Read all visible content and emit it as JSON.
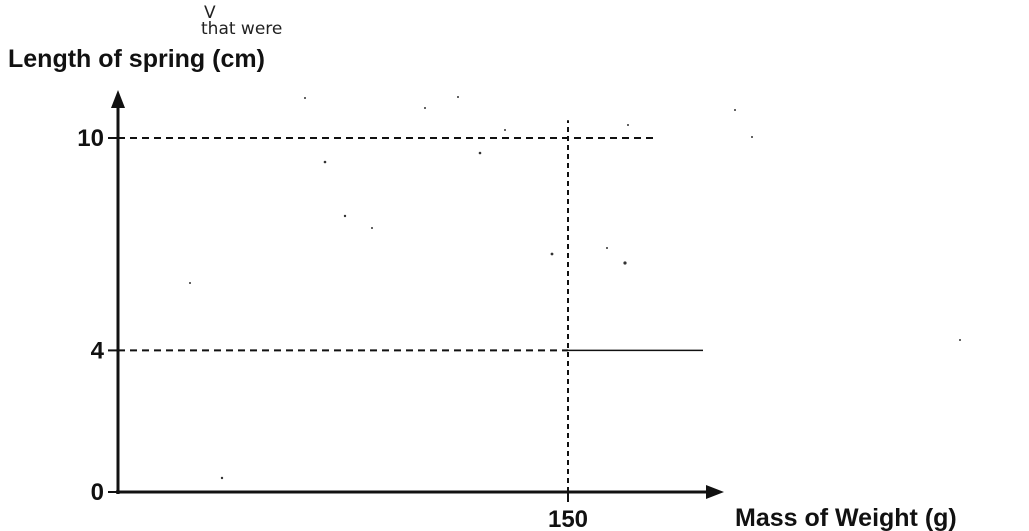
{
  "chart_data": {
    "type": "line",
    "xlabel": "Mass of Weight (g)",
    "ylabel": "Length of spring (cm)",
    "xlim": [
      0,
      220
    ],
    "ylim": [
      0,
      11.5
    ],
    "x_ticks": [
      {
        "value": 150,
        "label": "150"
      }
    ],
    "y_ticks": [
      {
        "value": 0,
        "label": "0"
      },
      {
        "value": 4,
        "label": "4"
      },
      {
        "value": 10,
        "label": "10"
      }
    ],
    "reference_lines": [
      {
        "orientation": "horizontal",
        "y": 10,
        "x_from": 0,
        "x_to": 180,
        "style": "dashed"
      },
      {
        "orientation": "horizontal",
        "y": 4,
        "x_from": 0,
        "x_to": 150,
        "style": "dashed"
      },
      {
        "orientation": "horizontal",
        "y": 4,
        "x_from": 150,
        "x_to": 195,
        "style": "solid"
      },
      {
        "orientation": "vertical",
        "x": 150,
        "y_from": 0,
        "y_to": 10.5,
        "style": "dashed"
      }
    ],
    "grid": false,
    "annotations": [
      {
        "text": "V"
      },
      {
        "text": "that were"
      }
    ]
  }
}
